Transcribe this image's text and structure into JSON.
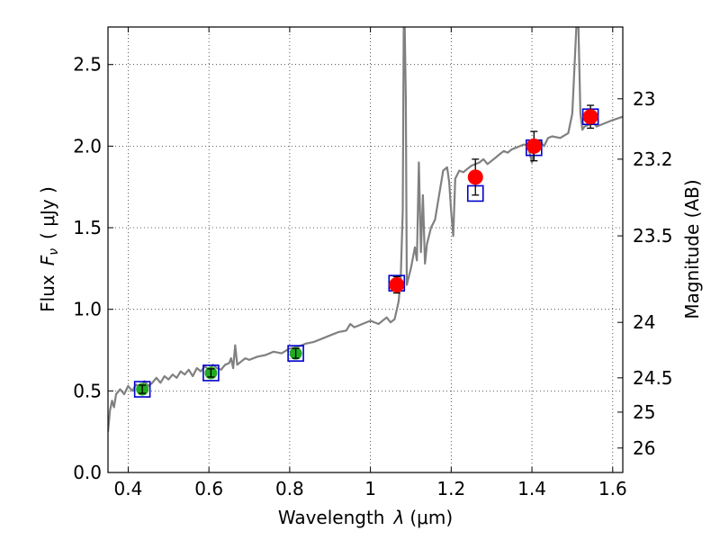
{
  "chart_data": {
    "type": "scatter",
    "title": "",
    "xlabel": "Wavelength  λ (μm)",
    "ylabel": "Flux  F_ν  ( μJy )",
    "ylabel_parts": {
      "prefix": "Flux",
      "symbol": "F",
      "subscript": "ν",
      "suffix": "( μJy )"
    },
    "xlabel_parts": {
      "prefix": "Wavelength",
      "symbol": "λ",
      "suffix": "(μm)"
    },
    "ylabel_right": "Magnitude (AB)",
    "xlim": [
      0.35,
      1.625
    ],
    "ylim": [
      0,
      2.73
    ],
    "grid": true,
    "xticks": [
      {
        "value": 0.4,
        "label": "0.4"
      },
      {
        "value": 0.6,
        "label": "0.6"
      },
      {
        "value": 0.8,
        "label": "0.8"
      },
      {
        "value": 1.0,
        "label": "1"
      },
      {
        "value": 1.2,
        "label": "1.2"
      },
      {
        "value": 1.4,
        "label": "1.4"
      },
      {
        "value": 1.6,
        "label": "1.6"
      }
    ],
    "yticks": [
      {
        "value": 0.0,
        "label": "0.0"
      },
      {
        "value": 0.5,
        "label": "0.5"
      },
      {
        "value": 1.0,
        "label": "1.0"
      },
      {
        "value": 1.5,
        "label": "1.5"
      },
      {
        "value": 2.0,
        "label": "2.0"
      },
      {
        "value": 2.5,
        "label": "2.5"
      }
    ],
    "right_ticks": [
      {
        "flux": 2.29,
        "label": "23"
      },
      {
        "flux": 1.92,
        "label": "23.2"
      },
      {
        "flux": 1.45,
        "label": "23.5"
      },
      {
        "flux": 0.92,
        "label": "24"
      },
      {
        "flux": 0.58,
        "label": "24.5"
      },
      {
        "flux": 0.37,
        "label": "25"
      },
      {
        "flux": 0.15,
        "label": "26"
      }
    ],
    "series": [
      {
        "name": "model spectrum",
        "kind": "line",
        "color": "#808080",
        "x": [
          0.35,
          0.355,
          0.36,
          0.365,
          0.37,
          0.38,
          0.39,
          0.4,
          0.41,
          0.42,
          0.43,
          0.44,
          0.45,
          0.46,
          0.47,
          0.48,
          0.49,
          0.5,
          0.51,
          0.52,
          0.53,
          0.54,
          0.55,
          0.56,
          0.57,
          0.58,
          0.59,
          0.6,
          0.61,
          0.62,
          0.63,
          0.64,
          0.65,
          0.655,
          0.66,
          0.665,
          0.67,
          0.68,
          0.69,
          0.7,
          0.72,
          0.74,
          0.76,
          0.78,
          0.8,
          0.82,
          0.84,
          0.86,
          0.88,
          0.9,
          0.92,
          0.94,
          0.95,
          0.96,
          0.98,
          1.0,
          1.02,
          1.04,
          1.05,
          1.06,
          1.07,
          1.075,
          1.08,
          1.0825,
          1.085,
          1.0875,
          1.09,
          1.1,
          1.11,
          1.115,
          1.12,
          1.125,
          1.13,
          1.135,
          1.14,
          1.15,
          1.16,
          1.17,
          1.18,
          1.19,
          1.195,
          1.2,
          1.205,
          1.21,
          1.22,
          1.23,
          1.24,
          1.25,
          1.26,
          1.27,
          1.28,
          1.29,
          1.3,
          1.31,
          1.32,
          1.33,
          1.34,
          1.35,
          1.36,
          1.37,
          1.38,
          1.39,
          1.4,
          1.41,
          1.42,
          1.43,
          1.44,
          1.45,
          1.47,
          1.49,
          1.5,
          1.51,
          1.515,
          1.52,
          1.525,
          1.53,
          1.54,
          1.55,
          1.56,
          1.58,
          1.6,
          1.625
        ],
        "y": [
          0.25,
          0.38,
          0.44,
          0.4,
          0.48,
          0.51,
          0.48,
          0.53,
          0.5,
          0.54,
          0.51,
          0.56,
          0.53,
          0.55,
          0.58,
          0.55,
          0.59,
          0.57,
          0.6,
          0.58,
          0.62,
          0.6,
          0.63,
          0.59,
          0.64,
          0.62,
          0.65,
          0.63,
          0.66,
          0.64,
          0.63,
          0.66,
          0.67,
          0.7,
          0.64,
          0.78,
          0.66,
          0.68,
          0.7,
          0.69,
          0.71,
          0.72,
          0.74,
          0.73,
          0.76,
          0.77,
          0.79,
          0.8,
          0.82,
          0.84,
          0.86,
          0.87,
          0.91,
          0.89,
          0.91,
          0.93,
          0.91,
          0.95,
          0.92,
          0.94,
          1.05,
          1.2,
          1.6,
          2.73,
          2.73,
          2.3,
          1.15,
          1.25,
          1.38,
          1.3,
          1.9,
          1.35,
          1.7,
          1.28,
          1.4,
          1.5,
          1.55,
          1.7,
          1.85,
          1.87,
          1.78,
          1.6,
          1.45,
          1.8,
          1.85,
          1.84,
          1.86,
          1.88,
          1.89,
          1.9,
          1.92,
          1.89,
          1.91,
          1.93,
          1.95,
          1.97,
          1.96,
          1.98,
          1.99,
          2.0,
          2.01,
          2.0,
          1.9,
          2.02,
          2.03,
          2.0,
          2.05,
          2.06,
          2.05,
          2.08,
          2.2,
          2.73,
          2.73,
          2.2,
          2.1,
          2.12,
          2.13,
          2.15,
          2.12,
          2.14,
          2.16,
          2.18
        ]
      },
      {
        "name": "model photometry",
        "kind": "open-square",
        "color": "#0000cc",
        "x": [
          0.435,
          0.605,
          0.815,
          1.065,
          1.26,
          1.405,
          1.545
        ],
        "y": [
          0.51,
          0.61,
          0.73,
          1.16,
          1.71,
          1.99,
          2.18
        ]
      },
      {
        "name": "observed optical",
        "kind": "point",
        "color": "#22aa22",
        "x": [
          0.435,
          0.605,
          0.815
        ],
        "y": [
          0.51,
          0.61,
          0.73
        ],
        "err": [
          0.025,
          0.025,
          0.03
        ]
      },
      {
        "name": "observed near-IR",
        "kind": "point",
        "color": "#ff0000",
        "x": [
          1.065,
          1.26,
          1.405,
          1.545
        ],
        "y": [
          1.15,
          1.81,
          2.0,
          2.18
        ],
        "err": [
          0.05,
          0.11,
          0.09,
          0.07
        ]
      }
    ]
  }
}
